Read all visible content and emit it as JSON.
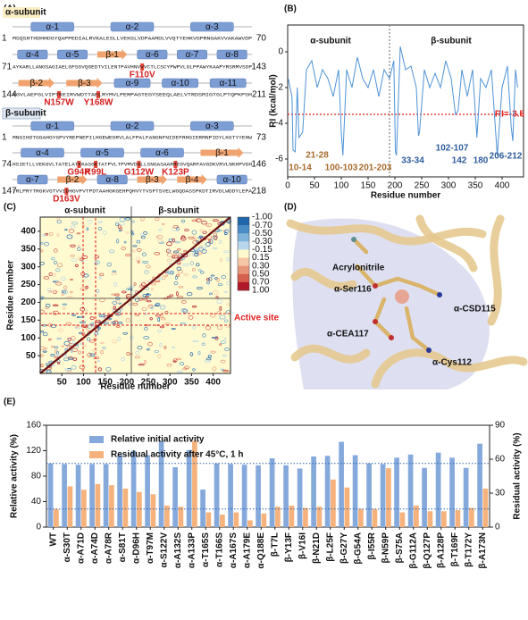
{
  "panel_labels": [
    "(A)",
    "(B)",
    "(C)",
    "(D)",
    "(E)"
  ],
  "sequence_panel": {
    "subunits": [
      {
        "name": "α-subunit",
        "rows": [
          {
            "start": 1,
            "end": 70,
            "sequence": "MSQSHTHDHHDGYQAPPEDIALRVKALESLLVEKGLVDPAAMDLVVQTYEHKVGPRNGAKVVAKAWVDP",
            "elements": [
              "α-1",
              "α-2",
              "α-3"
            ],
            "mutations": []
          },
          {
            "start": 71,
            "end": 143,
            "sequence": "AYKARLLANGSAGIAELGFSGVQGEDTVILENTPAVHNVVVCTLCSCYPWPVLGLPPAWYKAAPYRSRMVSDP",
            "elements": [
              "α-4",
              "α-5",
              "β-1",
              "α-6",
              "α-7",
              "α-8"
            ],
            "mutations": [
              "F110V"
            ]
          },
          {
            "start": 144,
            "end": 211,
            "sequence": "RGVLAEFGLVIPTKEIRVWDTTAELRYMVLPERPAGTEGYSEEQLAELVTRDSMIGTGLPTQPKPSH",
            "elements": [
              "β-2",
              "β-3",
              "α-9",
              "α-10",
              "α-11"
            ],
            "mutations": [
              "N157W",
              "Y168W"
            ]
          }
        ]
      },
      {
        "name": "β-subunit",
        "rows": [
          {
            "start": 1,
            "end": 73,
            "sequence": "MNGIHDTGGAHGYGPVYREPNEPILHGEWEGRVLALFPALFANGNFNIDEFRHGIERMNPIDYLKGTYYEHW",
            "elements": [
              "α-1",
              "α-2",
              "α-3"
            ],
            "mutations": []
          },
          {
            "start": 74,
            "end": 146,
            "sequence": "HSIETLLVEKGVLTATELATKKASGKTATPVLTPVMVDGLLSNGASAARREGVQARFAVGDKVRVLNKHPVGH",
            "elements": [
              "α-4",
              "α-5",
              "α-6",
              "β-1"
            ],
            "mutations": [
              "G94R",
              "K99L",
              "G112W",
              "K123P"
            ]
          },
          {
            "start": 147,
            "end": 218,
            "sequence": "TRLPRYTRGKVGTVVIDHGVFVTPDTAAHGKGEHPQHVYTVSFTSVELWGQDASSPKDTIRVDLWDDYLEPA",
            "elements": [
              "α-7",
              "β-2",
              "α-8",
              "β-3",
              "β-4",
              "α-10"
            ],
            "mutations": [
              "D163V"
            ]
          }
        ]
      }
    ]
  },
  "contact_map": {
    "subunit_labels": [
      "α-subunit",
      "β-subunit"
    ],
    "active_site": "Active site",
    "xlabel": "Residue number",
    "ylabel": "Residue number",
    "lim": [
      0,
      440
    ],
    "xticks": [
      50,
      100,
      150,
      200,
      250,
      300,
      350,
      400
    ],
    "yticks": [
      50,
      100,
      150,
      200,
      250,
      300,
      350,
      400
    ],
    "colorbar": [
      {
        "value": -1,
        "label": "-1.00"
      },
      {
        "value": -0.7,
        "label": "-0.70"
      },
      {
        "value": -0.5,
        "label": "-0.50"
      },
      {
        "value": -0.3,
        "label": "-0.30"
      },
      {
        "value": -0.15,
        "label": "-0.15"
      },
      {
        "value": 0.15,
        "label": "0.15"
      },
      {
        "value": 0.3,
        "label": "0.30"
      },
      {
        "value": 0.5,
        "label": "0.50"
      },
      {
        "value": 0.7,
        "label": "0.70"
      },
      {
        "value": 1,
        "label": "1.00"
      }
    ],
    "colorbar_colors": [
      "#2166ac",
      "#4a8cc4",
      "#80b4da",
      "#b9d7ec",
      "#fffacd",
      "#f6c6a6",
      "#e8967a",
      "#d4604d",
      "#b2182b"
    ]
  },
  "structure_panel": {
    "labels": [
      "Acrylonitrile",
      "α-Ser116",
      "α-CSD115",
      "α-CEA117",
      "α-Cys112"
    ]
  },
  "chart_data": [
    {
      "type": "line",
      "subunit_labels": [
        "α-subunit",
        "β-subunit"
      ],
      "xlabel": "Residue number",
      "ylabel": "RI (kcal/mol)",
      "x": [
        1,
        8,
        10,
        14,
        18,
        21,
        28,
        35,
        45,
        55,
        65,
        75,
        85,
        95,
        100,
        103,
        110,
        120,
        130,
        140,
        150,
        160,
        170,
        180,
        190,
        198,
        201,
        203,
        210,
        220,
        230,
        240,
        244,
        246,
        255,
        265,
        275,
        285,
        295,
        305,
        313,
        318,
        325,
        335,
        345,
        353,
        360,
        370,
        380,
        391,
        400,
        410,
        417,
        420,
        425,
        429
      ],
      "series": [
        {
          "color": "#4f93d6",
          "values": [
            -1.5,
            -2.5,
            -5.5,
            -5.6,
            -2,
            -4.8,
            -4.5,
            -1,
            -0.5,
            -2,
            -1,
            -1.5,
            -2.5,
            -1,
            -4.5,
            -5.8,
            -1,
            -2,
            -0.3,
            -1.5,
            -2,
            -1,
            -2.5,
            -1,
            -1.5,
            -0.5,
            -5.6,
            -5.8,
            0.3,
            -1,
            -0.8,
            -2,
            -4.7,
            -4.5,
            -1,
            -2,
            -1.2,
            -2,
            -0.5,
            -1.5,
            -3.5,
            -3.3,
            -1,
            -2.5,
            -1,
            -4.8,
            -1.5,
            -2,
            -1,
            -5.8,
            -2,
            -0.8,
            -4.2,
            -5,
            -1,
            -2
          ]
        }
      ],
      "threshold": {
        "value": -3.5,
        "label": "RI=-3.5",
        "color": "#e0201b"
      },
      "annotations": [
        {
          "text": "10-14",
          "color": "#a86a2c"
        },
        {
          "text": "21-28",
          "color": "#a86a2c"
        },
        {
          "text": "100-103",
          "color": "#a86a2c"
        },
        {
          "text": "201-203",
          "color": "#a86a2c"
        },
        {
          "text": "33-34",
          "color": "#2e5c9e"
        },
        {
          "text": "102-107",
          "color": "#2e5c9e"
        },
        {
          "text": "142",
          "color": "#2e5c9e"
        },
        {
          "text": "180",
          "color": "#2e5c9e"
        },
        {
          "text": "206-212",
          "color": "#2e5c9e"
        }
      ],
      "xlim": [
        0,
        440
      ],
      "xticks": [
        0,
        50,
        100,
        150,
        200,
        250,
        300,
        350,
        400
      ],
      "ylim": [
        -7,
        1.5
      ],
      "yticks": [
        -6,
        -4,
        -2,
        0
      ]
    },
    {
      "type": "bar",
      "categories": [
        "WT",
        "α-S30T",
        "α-A71D",
        "α-A74D",
        "α-A78R",
        "α-S81T",
        "α-D96H",
        "α-T97M",
        "α-S122V",
        "α-A132S",
        "α-A133P",
        "α-T165S",
        "α-T166S",
        "α-A167S",
        "α-A179E",
        "α-Q188E",
        "β-T7L",
        "β-Y13F",
        "β-V16I",
        "β-N21D",
        "β-L25F",
        "β-G27Y",
        "β-G54A",
        "β-I55R",
        "β-N59P",
        "β-S75A",
        "β-G112A",
        "β-Q127P",
        "β-A128P",
        "β-T169F",
        "β-T172Y",
        "β-A173N"
      ],
      "series": [
        {
          "name": "Relative initial activity",
          "color": "#86a9dc",
          "values": [
            100,
            99,
            98,
            99,
            99,
            113,
            120,
            113,
            135,
            94,
            121,
            59,
            100,
            99,
            98,
            97,
            108,
            97,
            92,
            111,
            112,
            134,
            113,
            100,
            99,
            109,
            114,
            93,
            117,
            109,
            93,
            131
          ]
        },
        {
          "name": "Residual activity after 45°C, 1 h",
          "color": "#f6b27c",
          "axis": "y2",
          "values": [
            16,
            36,
            33,
            38,
            37,
            34,
            31,
            29,
            19,
            18,
            76,
            13,
            11,
            13,
            6,
            12,
            18,
            19,
            17,
            18,
            42,
            35,
            16,
            16,
            52,
            13,
            19,
            14,
            14,
            15,
            17,
            34
          ]
        }
      ],
      "ylabel": "Relative activity (%)",
      "y2label": "Residual activity (%)",
      "ylim": [
        0,
        160
      ],
      "yticks": [
        0,
        40,
        80,
        120,
        160
      ],
      "y2lim": [
        0,
        90
      ],
      "y2ticks": [
        0,
        30,
        60,
        90
      ],
      "reference_lines": true,
      "reference_color": "#2f65ad"
    }
  ]
}
